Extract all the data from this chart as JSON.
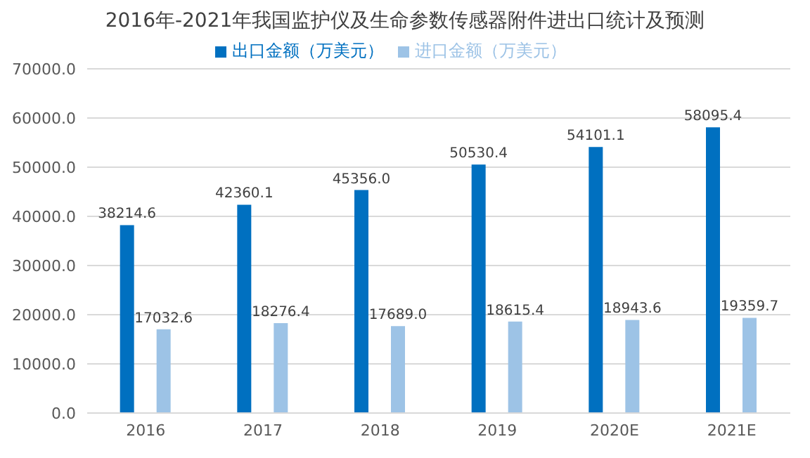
{
  "chart_data": {
    "type": "bar",
    "title": "2016年-2021年我国监护仪及生命参数传感器附件进出口统计及预测",
    "categories": [
      "2016",
      "2017",
      "2018",
      "2019",
      "2020E",
      "2021E"
    ],
    "series": [
      {
        "name": "出口金额（万美元）",
        "color": "#0070c0",
        "values": [
          38214.6,
          42360.1,
          45356.0,
          50530.4,
          54101.1,
          58095.4
        ],
        "value_labels": [
          "38214.6",
          "42360.1",
          "45356.0",
          "50530.4",
          "54101.1",
          "58095.4"
        ]
      },
      {
        "name": "进口金额（万美元）",
        "color": "#9dc3e6",
        "values": [
          17032.6,
          18276.4,
          17689.0,
          18615.4,
          18943.6,
          19359.7
        ],
        "value_labels": [
          "17032.6",
          "18276.4",
          "17689.0",
          "18615.4",
          "18943.6",
          "19359.7"
        ]
      }
    ],
    "ylim": [
      0,
      70000
    ],
    "yticks": [
      {
        "value": 0,
        "label": "0.0"
      },
      {
        "value": 10000,
        "label": "10000.0"
      },
      {
        "value": 20000,
        "label": "20000.0"
      },
      {
        "value": 30000,
        "label": "30000.0"
      },
      {
        "value": 40000,
        "label": "40000.0"
      },
      {
        "value": 50000,
        "label": "50000.0"
      },
      {
        "value": 60000,
        "label": "60000.0"
      },
      {
        "value": 70000,
        "label": "70000.0"
      }
    ],
    "grid": "y",
    "legend": "top"
  }
}
